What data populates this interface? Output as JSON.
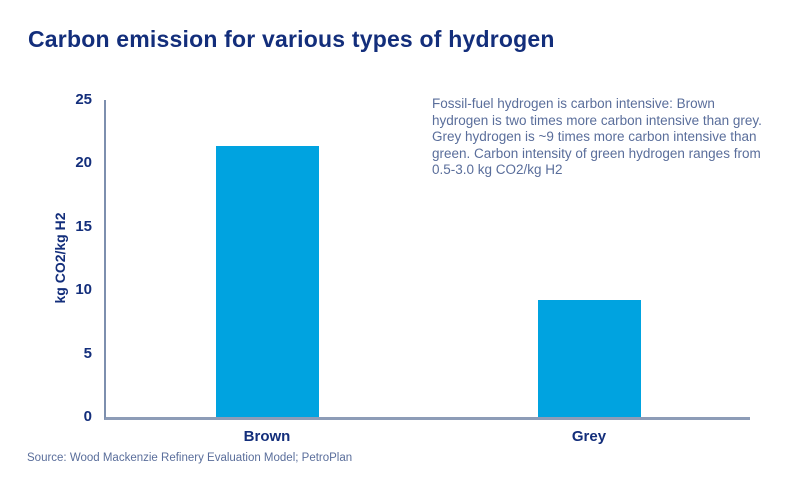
{
  "chart_data": {
    "type": "bar",
    "title": "Carbon emission for various types of hydrogen",
    "categories": [
      "Brown",
      "Grey"
    ],
    "values": [
      21.4,
      9.2
    ],
    "xlabel": "",
    "ylabel": "kg CO2/kg H2",
    "ylim": [
      0,
      25
    ],
    "yticks": [
      0,
      5,
      10,
      15,
      20,
      25
    ],
    "grid": false,
    "legend": false,
    "annotation": "Fossil-fuel hydrogen is carbon intensive: Brown hydrogen is two times more carbon intensive than grey. Grey hydrogen is ~9 times more carbon intensive than green. Carbon intensity of green hydrogen ranges from 0.5-3.0 kg CO2/kg H2",
    "source": "Source: Wood Mackenzie Refinery Evaluation Model; PetroPlan",
    "colors": {
      "bar": "#00A3E0",
      "title_text": "#132E7B",
      "tick_text": "#132E7B",
      "axis_line_y": "#7D8FAE",
      "axis_line_x": "#8D9CB7",
      "annotation_text": "#5A6E9B",
      "source_text": "#5A6E9B"
    }
  }
}
